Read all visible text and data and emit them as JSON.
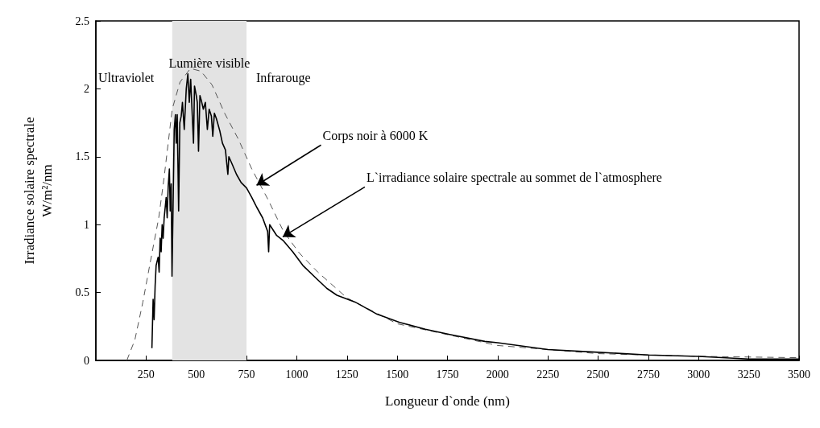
{
  "chart_data": {
    "type": "line",
    "xlabel": "Longueur d`onde (nm)",
    "ylabel": "Irradiance solaire spectrale\nW/m²/nm",
    "xlim": [
      0,
      3500
    ],
    "xticks": [
      250,
      500,
      750,
      1000,
      1250,
      1500,
      1750,
      2000,
      2250,
      2500,
      2750,
      3000,
      3250,
      3500
    ],
    "ylim": [
      0,
      2.5
    ],
    "yticks": [
      0,
      0.5,
      1,
      1.5,
      2,
      2.5
    ],
    "grid": false,
    "series": [
      {
        "color": "#555555",
        "line_style": "dashed",
        "x": [
          154,
          194,
          234,
          273,
          313,
          340,
          380,
          419,
          471,
          523,
          578,
          641,
          709,
          776,
          855,
          934,
          1013,
          1105,
          1250,
          1500,
          2000,
          2500,
          3000,
          3500
        ],
        "values": [
          0.0,
          0.15,
          0.43,
          0.74,
          1.05,
          1.35,
          1.85,
          2.05,
          2.15,
          2.13,
          2.03,
          1.82,
          1.63,
          1.41,
          1.19,
          0.95,
          0.79,
          0.65,
          0.46,
          0.27,
          0.11,
          0.05,
          0.03,
          0.02
        ]
      },
      {
        "color": "#000000",
        "line_style": "solid",
        "x": [
          279,
          285,
          290,
          295,
          300,
          310,
          315,
          320,
          325,
          330,
          335,
          340,
          350,
          355,
          360,
          366,
          370,
          375,
          379,
          385,
          390,
          396,
          400,
          405,
          412,
          418,
          425,
          431,
          440,
          450,
          458,
          465,
          472,
          480,
          486,
          491,
          500,
          505,
          511,
          518,
          524,
          535,
          545,
          555,
          564,
          575,
          582,
          590,
          600,
          617,
          630,
          645,
          657,
          662,
          677,
          700,
          723,
          750,
          776,
          800,
          830,
          855,
          860,
          865,
          900,
          934,
          980,
          1030,
          1100,
          1150,
          1200,
          1290,
          1400,
          1512,
          1640,
          1766,
          1936,
          2000,
          2250,
          2500,
          2750,
          3000,
          3250,
          3500
        ],
        "values": [
          0.09,
          0.45,
          0.3,
          0.55,
          0.7,
          0.76,
          0.65,
          0.9,
          0.8,
          1.0,
          0.9,
          1.05,
          1.2,
          1.05,
          1.28,
          1.41,
          1.1,
          1.3,
          0.62,
          1.2,
          1.7,
          1.81,
          1.6,
          1.81,
          1.1,
          1.75,
          1.8,
          1.9,
          1.7,
          2.0,
          2.11,
          1.9,
          2.07,
          1.8,
          1.6,
          2.02,
          1.95,
          1.9,
          1.54,
          1.95,
          1.92,
          1.85,
          1.9,
          1.7,
          1.85,
          1.8,
          1.65,
          1.82,
          1.78,
          1.69,
          1.6,
          1.55,
          1.37,
          1.5,
          1.45,
          1.37,
          1.31,
          1.27,
          1.2,
          1.13,
          1.05,
          0.95,
          0.8,
          1.0,
          0.92,
          0.88,
          0.8,
          0.7,
          0.6,
          0.53,
          0.48,
          0.43,
          0.34,
          0.28,
          0.23,
          0.19,
          0.14,
          0.13,
          0.08,
          0.06,
          0.04,
          0.03,
          0.01,
          0.01
        ]
      }
    ],
    "bands": [
      {
        "axis": "x",
        "from": 380,
        "to": 750,
        "label": "Lumière visible",
        "color": "#e3e3e3"
      }
    ],
    "annotations": [
      "Ultraviolet",
      "Infrarouge",
      {
        "text": "Corps noir à 6000 K",
        "x": 800,
        "y": 1.29
      },
      {
        "text": "L`irradiance solaire spectrale au sommet de l`atmosphere",
        "x": 930,
        "y": 0.91
      }
    ]
  }
}
